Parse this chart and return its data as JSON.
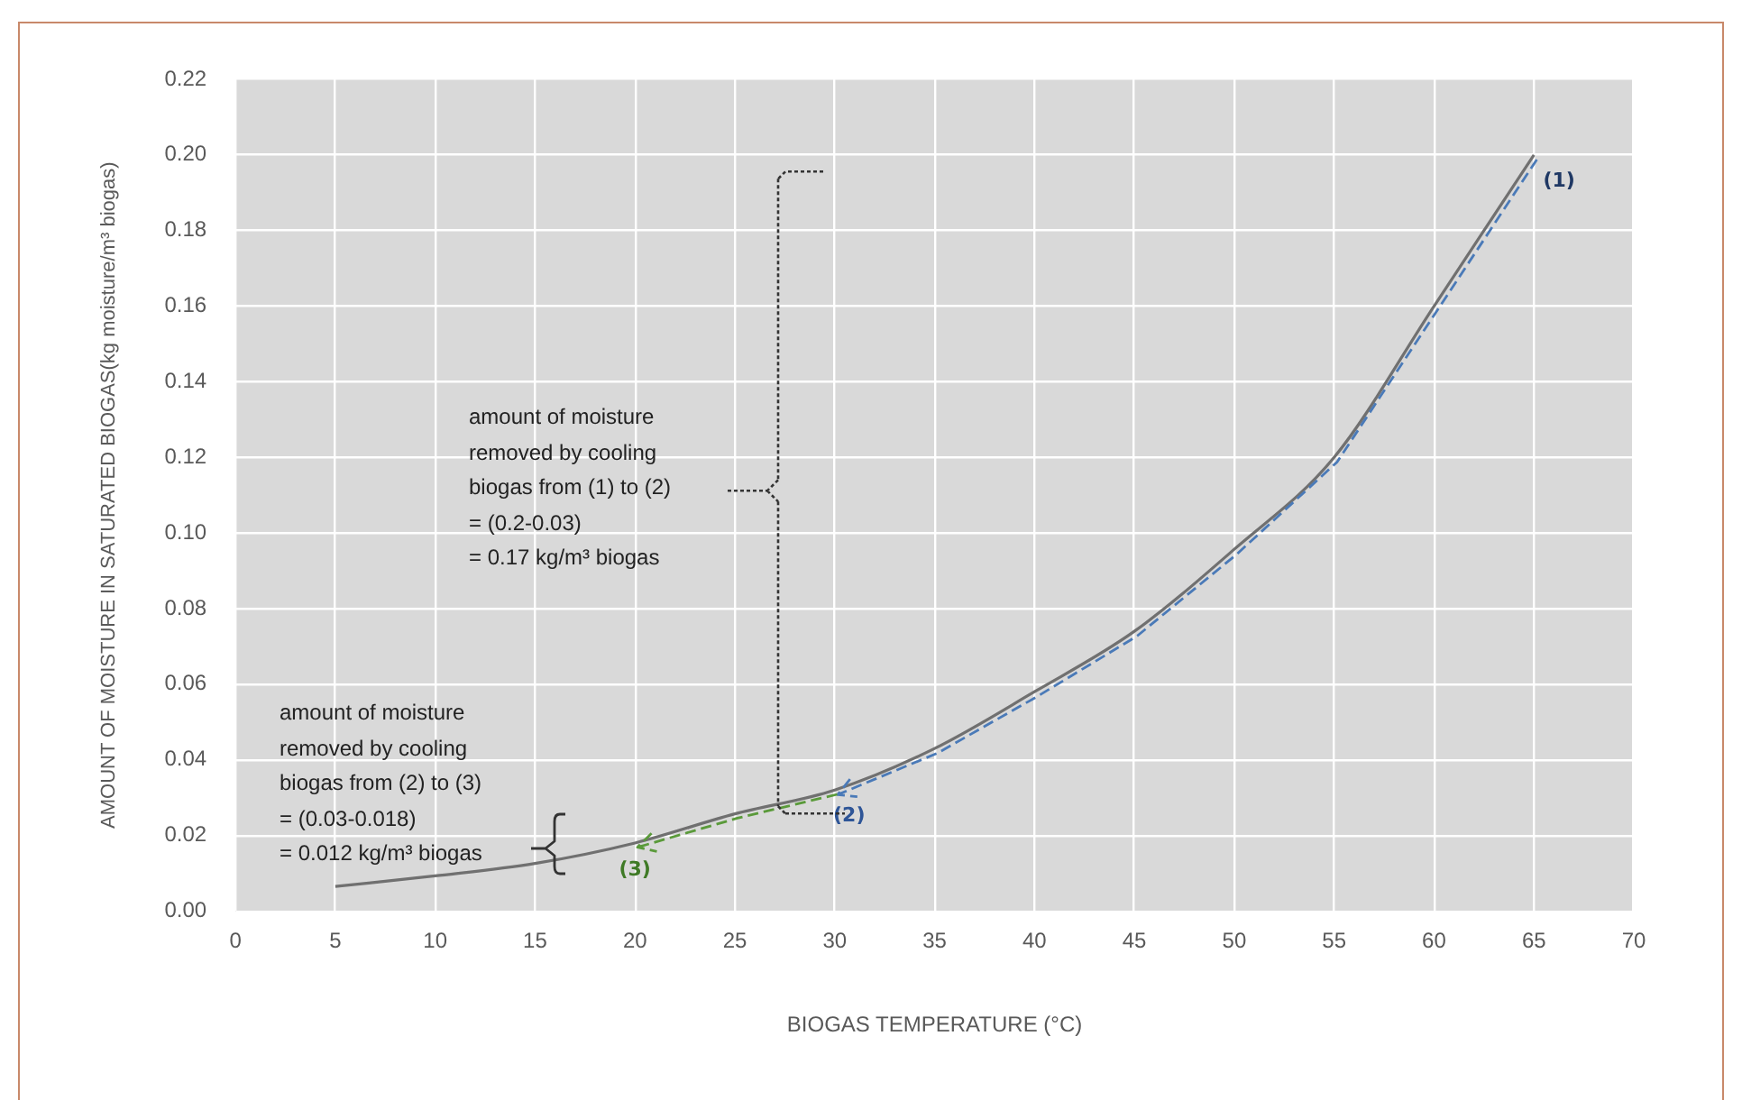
{
  "chart_data": {
    "type": "line",
    "xlabel": "BIOGAS TEMPERATURE (°C)",
    "ylabel": "AMOUNT OF MOISTURE IN SATURATED BIOGAS(kg moisture/m³ biogas)",
    "xlim": [
      0,
      70
    ],
    "xticks": [
      0,
      5,
      10,
      15,
      20,
      25,
      30,
      35,
      40,
      45,
      50,
      55,
      60,
      65,
      70
    ],
    "ylim": [
      0,
      0.22
    ],
    "yticks": [
      {
        "value": 0,
        "label": "0.00"
      },
      {
        "value": 0.02,
        "label": "0.02"
      },
      {
        "value": 0.04,
        "label": "0.04"
      },
      {
        "value": 0.06,
        "label": "0.06"
      },
      {
        "value": 0.08,
        "label": "0.08"
      },
      {
        "value": 0.1,
        "label": "0.10"
      },
      {
        "value": 0.12,
        "label": "0.12"
      },
      {
        "value": 0.14,
        "label": "0.14"
      },
      {
        "value": 0.16,
        "label": "0.16"
      },
      {
        "value": 0.18,
        "label": "0.18"
      },
      {
        "value": 0.2,
        "label": "0.20"
      },
      {
        "value": 0.22,
        "label": "0.22"
      }
    ],
    "grid": true,
    "legend": false,
    "marker": "none",
    "line_style": "solid",
    "series": [
      {
        "color": "#707070",
        "x": [
          5,
          10,
          15,
          20,
          25,
          30,
          35,
          40,
          45,
          50,
          55,
          60,
          65
        ],
        "values": [
          0.0065,
          0.0093,
          0.0126,
          0.018,
          0.0257,
          0.032,
          0.043,
          0.058,
          0.074,
          0.0957,
          0.12,
          0.16,
          0.2
        ]
      }
    ],
    "annotations": [
      {
        "text": "(1)",
        "x": 65,
        "y": 0.2
      },
      {
        "text": "(2)",
        "x": 30,
        "y": 0.032
      },
      {
        "text": "(3)",
        "x": 20,
        "y": 0.018
      },
      "amount of moisture\nremoved by cooling\nbiogas from (1) to (2)\n= (0.2-0.03)\n= 0.17 kg/m³ biogas",
      "amount of moisture\nremoved by cooling\nbiogas from (2) to (3)\n= (0.03-0.018)\n= 0.012 kg/m³ biogas"
    ]
  }
}
